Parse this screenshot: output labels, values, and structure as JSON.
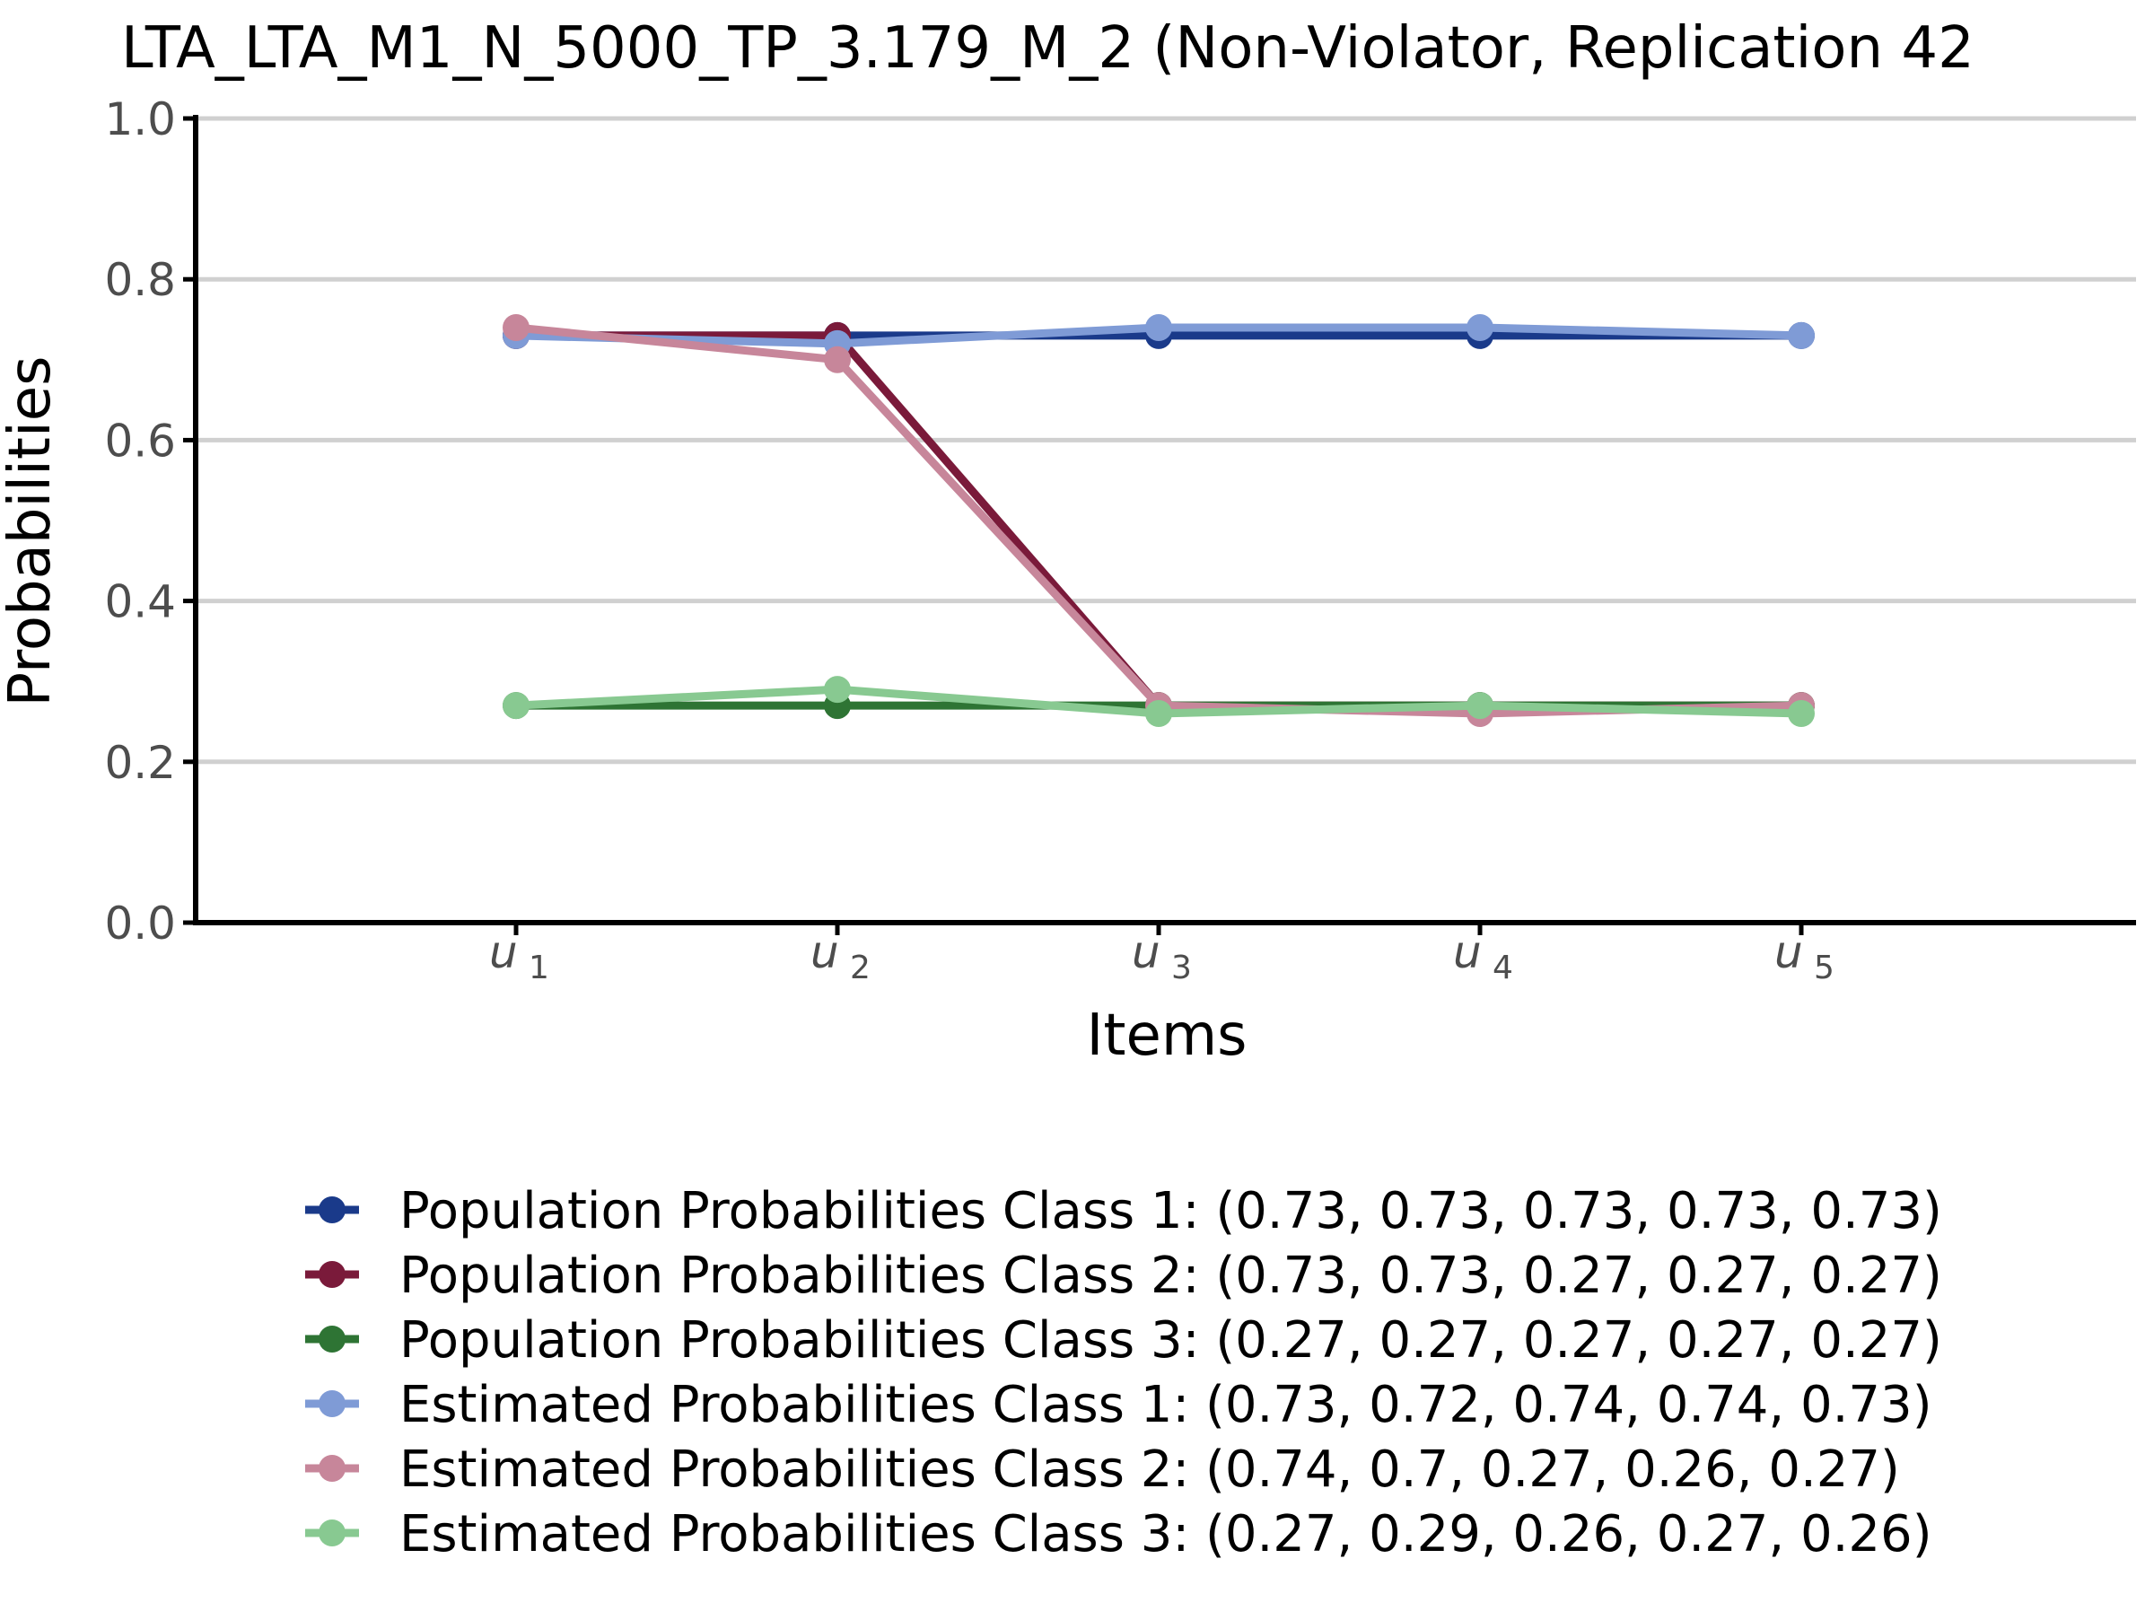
{
  "chart_data": {
    "type": "line",
    "title": "LTA_LTA_M1_N_5000_TP_3.179_M_2 (Non-Violator, Replication 42",
    "xlabel": "Items",
    "ylabel": "Probabilities",
    "categories": [
      {
        "main": "u",
        "sub": "1"
      },
      {
        "main": "u",
        "sub": "2"
      },
      {
        "main": "u",
        "sub": "3"
      },
      {
        "main": "u",
        "sub": "4"
      },
      {
        "main": "u",
        "sub": "5"
      }
    ],
    "ylim": [
      0,
      1
    ],
    "yticks": [
      "0.0",
      "0.2",
      "0.4",
      "0.6",
      "0.8",
      "1.0"
    ],
    "ytick_values": [
      0,
      0.2,
      0.4,
      0.6,
      0.8,
      1.0
    ],
    "grid": "horizontal",
    "legend_position": "bottom",
    "series": [
      {
        "name": "Population Probabilities Class 1: (0.73, 0.73, 0.73, 0.73, 0.73)",
        "color": "#1a3a8a",
        "values": [
          0.73,
          0.73,
          0.73,
          0.73,
          0.73
        ]
      },
      {
        "name": "Population Probabilities Class 2: (0.73, 0.73, 0.27, 0.27, 0.27)",
        "color": "#7a1a3a",
        "values": [
          0.73,
          0.73,
          0.27,
          0.27,
          0.27
        ]
      },
      {
        "name": "Population Probabilities Class 3: (0.27, 0.27, 0.27, 0.27, 0.27)",
        "color": "#2e7434",
        "values": [
          0.27,
          0.27,
          0.27,
          0.27,
          0.27
        ]
      },
      {
        "name": "Estimated Probabilities Class 1: (0.73, 0.72, 0.74, 0.74, 0.73)",
        "color": "#7f9bd6",
        "values": [
          0.73,
          0.72,
          0.74,
          0.74,
          0.73
        ]
      },
      {
        "name": "Estimated Probabilities Class 2: (0.74, 0.7, 0.27, 0.26, 0.27)",
        "color": "#c7869a",
        "values": [
          0.74,
          0.7,
          0.27,
          0.26,
          0.27
        ]
      },
      {
        "name": "Estimated Probabilities Class 3: (0.27, 0.29, 0.26, 0.27, 0.26)",
        "color": "#88c991",
        "values": [
          0.27,
          0.29,
          0.26,
          0.27,
          0.26
        ]
      }
    ]
  }
}
